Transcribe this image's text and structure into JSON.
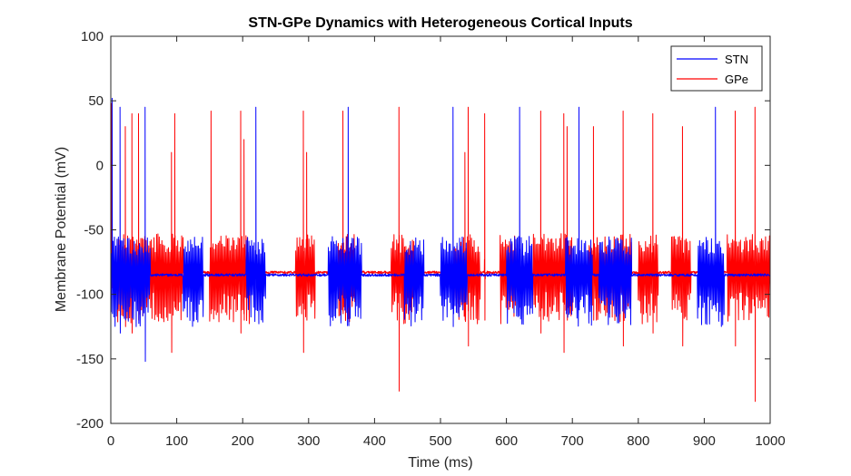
{
  "chart_data": {
    "type": "line",
    "title": "STN-GPe Dynamics with Heterogeneous Cortical Inputs",
    "xlabel": "Time (ms)",
    "ylabel": "Membrane Potential (mV)",
    "xlim": [
      0,
      1000
    ],
    "ylim": [
      -200,
      100
    ],
    "xticks": [
      0,
      100,
      200,
      300,
      400,
      500,
      600,
      700,
      800,
      900,
      1000
    ],
    "yticks": [
      100,
      50,
      0,
      -50,
      -100,
      -150,
      -200
    ],
    "xtick_labels": [
      "0",
      "100",
      "200",
      "300",
      "400",
      "500",
      "600",
      "700",
      "800",
      "900",
      "1000"
    ],
    "ytick_labels": [
      "100",
      "50",
      "0",
      "-50",
      "-100",
      "-150",
      "-200"
    ],
    "legend_position": "top-right",
    "grid": false,
    "series": [
      {
        "name": "STN",
        "color": "#0000ff",
        "baseline": -85,
        "spikes": [
          {
            "t": 2,
            "peak": 52,
            "trough": -100
          },
          {
            "t": 14,
            "peak": 45,
            "trough": -130
          },
          {
            "t": 52,
            "peak": 45,
            "trough": -152
          },
          {
            "t": 220,
            "peak": 45,
            "trough": -112
          },
          {
            "t": 360,
            "peak": 45,
            "trough": -110
          },
          {
            "t": 519,
            "peak": 45,
            "trough": -125
          },
          {
            "t": 620,
            "peak": 45,
            "trough": -110
          },
          {
            "t": 710,
            "peak": 45,
            "trough": -112
          },
          {
            "t": 917,
            "peak": 45,
            "trough": -110
          }
        ],
        "burst_windows": [
          [
            0,
            60
          ],
          [
            110,
            140
          ],
          [
            205,
            235
          ],
          [
            330,
            380
          ],
          [
            445,
            475
          ],
          [
            500,
            540
          ],
          [
            600,
            640
          ],
          [
            690,
            730
          ],
          [
            740,
            790
          ],
          [
            890,
            930
          ]
        ]
      },
      {
        "name": "GPe",
        "color": "#ff0000",
        "baseline": -83,
        "spikes": [
          {
            "t": 1,
            "peak": 48,
            "trough": -95
          },
          {
            "t": 22,
            "peak": 30,
            "trough": -125
          },
          {
            "t": 32,
            "peak": 40,
            "trough": -130
          },
          {
            "t": 42,
            "peak": 40,
            "trough": -120
          },
          {
            "t": 92,
            "peak": 10,
            "trough": -145
          },
          {
            "t": 97,
            "peak": 40,
            "trough": -110
          },
          {
            "t": 152,
            "peak": 42,
            "trough": -115
          },
          {
            "t": 197,
            "peak": 42,
            "trough": -130
          },
          {
            "t": 202,
            "peak": 20,
            "trough": -120
          },
          {
            "t": 292,
            "peak": 42,
            "trough": -145
          },
          {
            "t": 297,
            "peak": 10,
            "trough": -120
          },
          {
            "t": 352,
            "peak": 42,
            "trough": -115
          },
          {
            "t": 437,
            "peak": 45,
            "trough": -175
          },
          {
            "t": 542,
            "peak": 45,
            "trough": -140
          },
          {
            "t": 537,
            "peak": 10,
            "trough": -120
          },
          {
            "t": 567,
            "peak": 40,
            "trough": -120
          },
          {
            "t": 652,
            "peak": 42,
            "trough": -130
          },
          {
            "t": 687,
            "peak": 40,
            "trough": -145
          },
          {
            "t": 692,
            "peak": 30,
            "trough": -120
          },
          {
            "t": 732,
            "peak": 30,
            "trough": -120
          },
          {
            "t": 777,
            "peak": 42,
            "trough": -140
          },
          {
            "t": 822,
            "peak": 40,
            "trough": -130
          },
          {
            "t": 867,
            "peak": 30,
            "trough": -140
          },
          {
            "t": 947,
            "peak": 42,
            "trough": -140
          },
          {
            "t": 977,
            "peak": 45,
            "trough": -183
          }
        ],
        "burst_windows": [
          [
            10,
            110
          ],
          [
            150,
            210
          ],
          [
            280,
            310
          ],
          [
            345,
            370
          ],
          [
            425,
            460
          ],
          [
            520,
            560
          ],
          [
            590,
            615
          ],
          [
            640,
            700
          ],
          [
            725,
            790
          ],
          [
            800,
            830
          ],
          [
            850,
            880
          ],
          [
            935,
            1000
          ]
        ]
      }
    ]
  }
}
